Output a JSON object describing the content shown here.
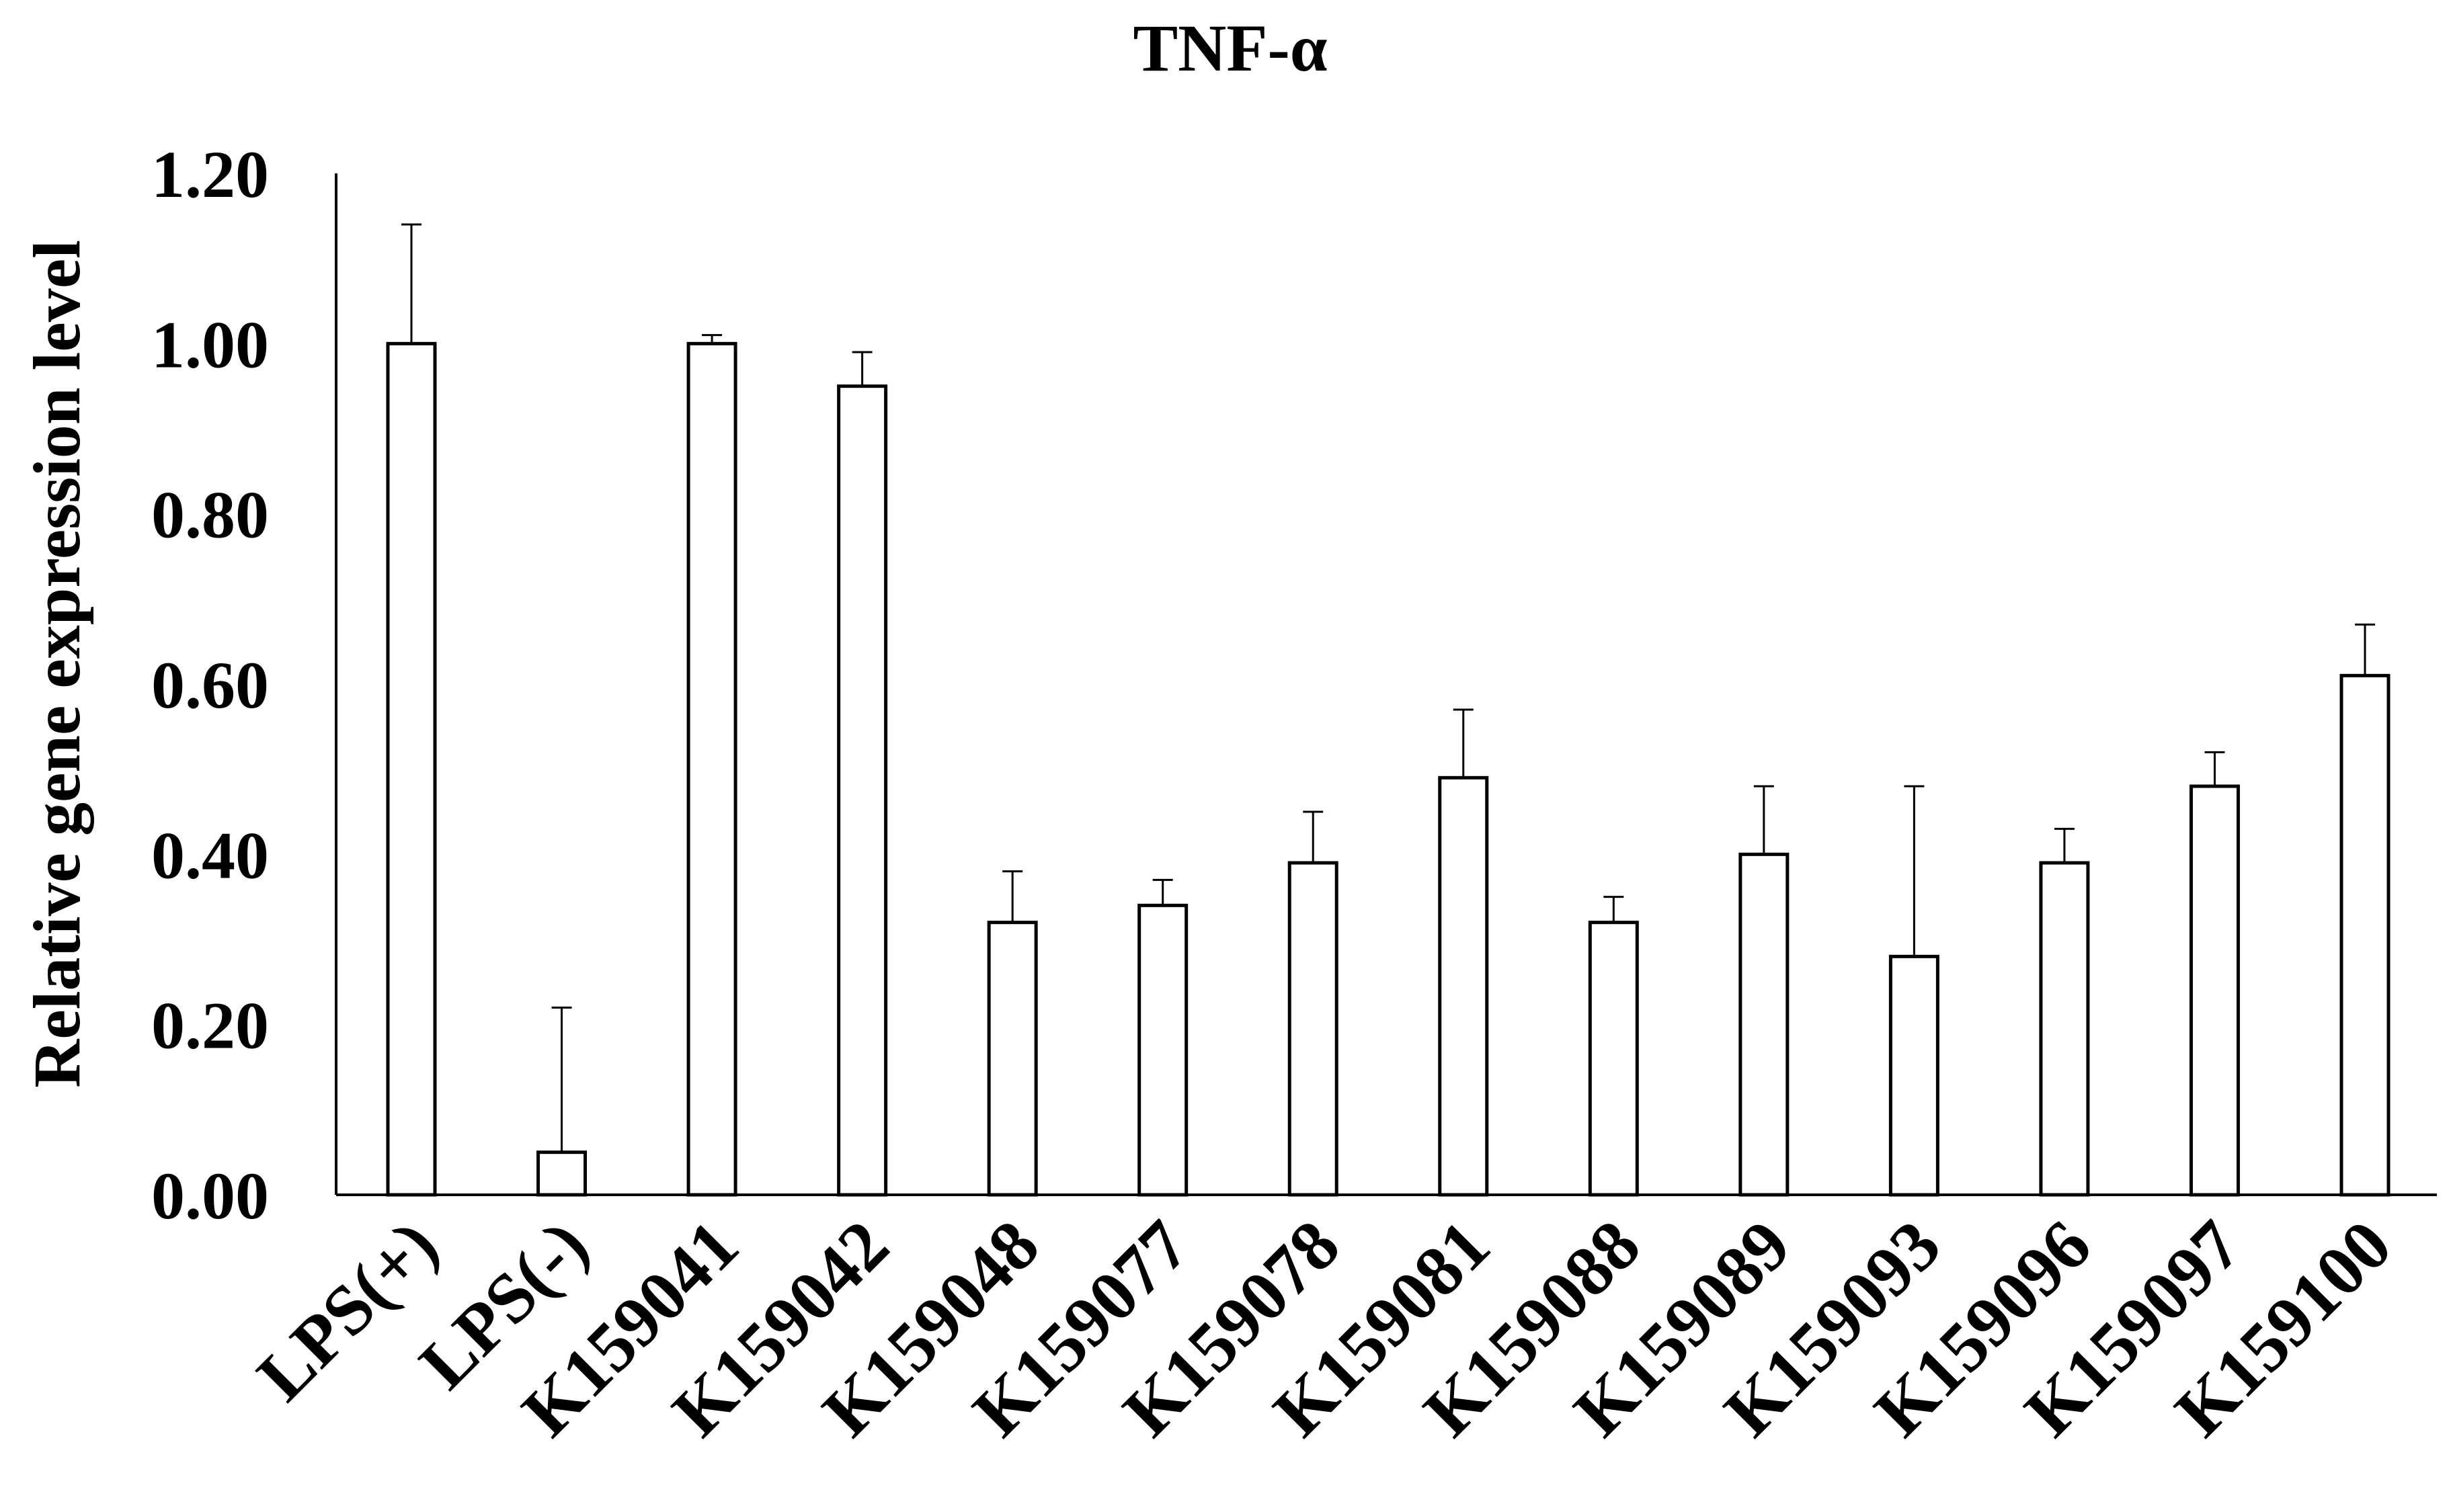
{
  "chart_data": {
    "type": "bar",
    "title": "TNF-α",
    "xlabel": "",
    "ylabel": "Relative gene expression level",
    "ylim": [
      0,
      1.2
    ],
    "yticks": [
      "0.00",
      "0.20",
      "0.40",
      "0.60",
      "0.80",
      "1.00",
      "1.20"
    ],
    "categories": [
      "LPS(+)",
      "LPS(-)",
      "K159041",
      "K159042",
      "K159048",
      "K159077",
      "K159078",
      "K159081",
      "K159088",
      "K159089",
      "K159093",
      "K159096",
      "K159097",
      "K159100"
    ],
    "values": [
      1.0,
      0.05,
      1.0,
      0.95,
      0.32,
      0.34,
      0.39,
      0.49,
      0.32,
      0.4,
      0.28,
      0.39,
      0.48,
      0.61
    ],
    "errors": [
      0.14,
      0.17,
      0.01,
      0.04,
      0.06,
      0.03,
      0.06,
      0.08,
      0.03,
      0.08,
      0.2,
      0.04,
      0.04,
      0.06
    ],
    "grid": false,
    "bar_color": "#ffffff",
    "edge_color": "#000000"
  }
}
